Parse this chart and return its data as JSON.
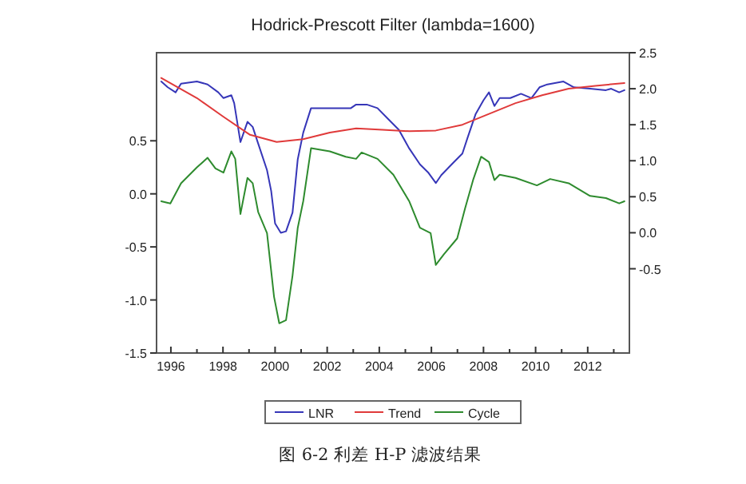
{
  "chart_data": {
    "type": "line",
    "title": "Hodrick-Prescott Filter (lambda=1600)",
    "annotations": [
      "图 6-2 利差 H-P 滤波结果"
    ],
    "xlim": [
      1995.45,
      2013.6
    ],
    "xticks": [
      {
        "value": 1996,
        "label": "1996"
      },
      {
        "value": 1997,
        "label": null
      },
      {
        "value": 1998,
        "label": "1998"
      },
      {
        "value": 1999,
        "label": null
      },
      {
        "value": 2000,
        "label": "2000"
      },
      {
        "value": 2001,
        "label": null
      },
      {
        "value": 2002,
        "label": "2002"
      },
      {
        "value": 2003,
        "label": null
      },
      {
        "value": 2004,
        "label": "2004"
      },
      {
        "value": 2005,
        "label": null
      },
      {
        "value": 2006,
        "label": "2006"
      },
      {
        "value": 2007,
        "label": null
      },
      {
        "value": 2008,
        "label": "2008"
      },
      {
        "value": 2009,
        "label": null
      },
      {
        "value": 2010,
        "label": "2010"
      },
      {
        "value": 2011,
        "label": null
      },
      {
        "value": 2012,
        "label": "2012"
      },
      {
        "value": 2013,
        "label": null
      }
    ],
    "ylim": [
      -1.5,
      1.33
    ],
    "yticks": [
      {
        "value": -1.5,
        "label": "-1.5"
      },
      {
        "value": -1.0,
        "label": "-1.0"
      },
      {
        "value": -0.5,
        "label": "-0.5"
      },
      {
        "value": 0.0,
        "label": "0.0"
      },
      {
        "value": 0.5,
        "label": "0.5"
      }
    ],
    "y2lim": [
      -1.67,
      2.5
    ],
    "y2ticks": [
      {
        "value": -0.5,
        "label": "-0.5"
      },
      {
        "value": 0.0,
        "label": "0.0"
      },
      {
        "value": 0.5,
        "label": "0.5"
      },
      {
        "value": 1.0,
        "label": "1.0"
      },
      {
        "value": 1.5,
        "label": "1.5"
      },
      {
        "value": 2.0,
        "label": "2.0"
      },
      {
        "value": 2.5,
        "label": "2.5"
      }
    ],
    "legend": "bottom",
    "line_style": "solid",
    "series": [
      {
        "name": "LNR",
        "color": "#3636b8",
        "axis": "y2",
        "x": [
          1995.63,
          1995.88,
          1996.18,
          1996.39,
          1997.0,
          1997.41,
          1997.82,
          1998.02,
          1998.32,
          1998.43,
          1998.67,
          1998.94,
          1999.14,
          1999.35,
          1999.69,
          1999.85,
          2000.0,
          2000.22,
          2000.42,
          2000.67,
          2000.87,
          2001.08,
          2001.38,
          2002.3,
          2002.91,
          2003.11,
          2003.52,
          2003.93,
          2004.34,
          2004.75,
          2005.15,
          2005.56,
          2005.87,
          2006.17,
          2006.38,
          2006.78,
          2007.19,
          2007.39,
          2007.7,
          2008.0,
          2008.21,
          2008.42,
          2008.62,
          2009.03,
          2009.44,
          2009.84,
          2010.15,
          2010.45,
          2011.07,
          2011.47,
          2012.09,
          2012.7,
          2012.9,
          2013.21,
          2013.41
        ],
        "values": [
          2.1,
          2.02,
          1.95,
          2.07,
          2.1,
          2.06,
          1.95,
          1.87,
          1.91,
          1.8,
          1.26,
          1.54,
          1.47,
          1.24,
          0.87,
          0.58,
          0.13,
          0.0,
          0.02,
          0.28,
          1.02,
          1.39,
          1.73,
          1.73,
          1.73,
          1.78,
          1.78,
          1.73,
          1.58,
          1.43,
          1.17,
          0.95,
          0.84,
          0.69,
          0.8,
          0.95,
          1.1,
          1.32,
          1.65,
          1.84,
          1.95,
          1.76,
          1.87,
          1.87,
          1.93,
          1.87,
          2.02,
          2.06,
          2.1,
          2.02,
          2.0,
          1.98,
          2.0,
          1.95,
          1.98
        ]
      },
      {
        "name": "Trend",
        "color": "#e03a3a",
        "axis": "y2",
        "x": [
          1995.63,
          1997.0,
          1998.02,
          1999.04,
          2000.06,
          2001.08,
          2002.1,
          2003.11,
          2004.13,
          2005.15,
          2006.17,
          2007.19,
          2008.21,
          2009.23,
          2010.25,
          2011.27,
          2012.29,
          2013.41
        ],
        "values": [
          2.15,
          1.87,
          1.61,
          1.36,
          1.26,
          1.3,
          1.39,
          1.45,
          1.43,
          1.41,
          1.42,
          1.5,
          1.65,
          1.8,
          1.91,
          2.0,
          2.04,
          2.08
        ]
      },
      {
        "name": "Cycle",
        "color": "#2e8b2e",
        "axis": "y",
        "x": [
          1995.63,
          1995.98,
          1996.39,
          1997.0,
          1997.41,
          1997.71,
          1998.02,
          1998.32,
          1998.47,
          1998.67,
          1998.94,
          1999.14,
          1999.35,
          1999.69,
          1999.96,
          2000.16,
          2000.42,
          2000.67,
          2000.87,
          2001.08,
          2001.38,
          2002.1,
          2002.71,
          2003.11,
          2003.32,
          2003.93,
          2004.54,
          2005.15,
          2005.56,
          2005.97,
          2006.17,
          2006.48,
          2006.99,
          2007.29,
          2007.6,
          2007.91,
          2008.21,
          2008.42,
          2008.62,
          2009.23,
          2010.05,
          2010.56,
          2011.27,
          2012.09,
          2012.7,
          2013.21,
          2013.41
        ],
        "values": [
          -0.07,
          -0.09,
          0.1,
          0.25,
          0.34,
          0.24,
          0.2,
          0.4,
          0.33,
          -0.19,
          0.15,
          0.1,
          -0.17,
          -0.37,
          -0.97,
          -1.22,
          -1.19,
          -0.77,
          -0.32,
          -0.07,
          0.43,
          0.4,
          0.35,
          0.33,
          0.39,
          0.33,
          0.18,
          -0.07,
          -0.32,
          -0.37,
          -0.67,
          -0.57,
          -0.42,
          -0.14,
          0.13,
          0.35,
          0.3,
          0.13,
          0.18,
          0.15,
          0.08,
          0.14,
          0.1,
          -0.02,
          -0.04,
          -0.09,
          -0.07
        ]
      }
    ]
  }
}
